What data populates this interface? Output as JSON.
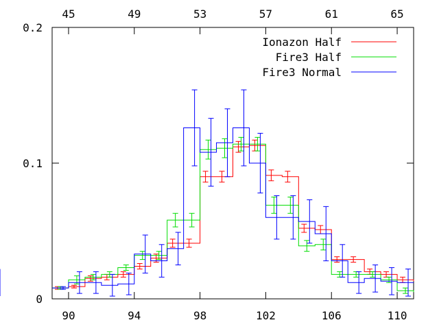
{
  "chart_data": {
    "type": "line",
    "style": "step-with-error-bars",
    "xlim": [
      89,
      111
    ],
    "ylim": [
      0,
      0.2
    ],
    "x_ticks": [
      "90",
      "94",
      "98",
      "102",
      "106",
      "110"
    ],
    "x_tick_values": [
      90,
      94,
      98,
      102,
      106,
      110
    ],
    "x2_ticks": [
      "45",
      "49",
      "53",
      "57",
      "61",
      "65"
    ],
    "y_ticks": [
      "0",
      "0.1",
      "0.2"
    ],
    "y_tick_values": [
      0,
      0.1,
      0.2
    ],
    "legend_position": "top-right",
    "grid": false,
    "bin_edges": [
      89,
      90,
      91,
      92,
      93,
      94,
      95,
      96,
      97,
      98,
      99,
      100,
      101,
      102,
      103,
      104,
      105,
      106,
      107,
      108,
      109,
      110,
      111
    ],
    "series": [
      {
        "name": "Ionazon Half",
        "color": "#ff0000",
        "values": [
          0.008,
          0.009,
          0.015,
          0.016,
          0.018,
          0.024,
          0.03,
          0.041,
          0.041,
          0.09,
          0.09,
          0.112,
          0.113,
          0.091,
          0.09,
          0.052,
          0.051,
          0.029,
          0.029,
          0.02,
          0.018,
          0.014,
          0.013
        ],
        "errors": [
          0.001,
          0.001,
          0.002,
          0.002,
          0.002,
          0.002,
          0.003,
          0.003,
          0.003,
          0.004,
          0.004,
          0.004,
          0.004,
          0.004,
          0.004,
          0.003,
          0.003,
          0.002,
          0.002,
          0.002,
          0.002,
          0.002,
          0.002
        ]
      },
      {
        "name": "Fire3 Half",
        "color": "#00dd00",
        "values": [
          0.008,
          0.014,
          0.016,
          0.018,
          0.023,
          0.032,
          0.032,
          0.058,
          0.058,
          0.11,
          0.111,
          0.114,
          0.114,
          0.069,
          0.069,
          0.039,
          0.04,
          0.018,
          0.018,
          0.018,
          0.014,
          0.006,
          0.005
        ],
        "errors": [
          0.001,
          0.003,
          0.002,
          0.002,
          0.002,
          0.003,
          0.003,
          0.005,
          0.005,
          0.007,
          0.007,
          0.005,
          0.005,
          0.006,
          0.006,
          0.004,
          0.004,
          0.002,
          0.002,
          0.002,
          0.002,
          0.002,
          0.002
        ]
      },
      {
        "name": "Fire3 Normal",
        "color": "#0000ff",
        "values": [
          0.008,
          0.012,
          0.012,
          0.01,
          0.011,
          0.033,
          0.028,
          0.037,
          0.126,
          0.108,
          0.115,
          0.126,
          0.1,
          0.06,
          0.06,
          0.057,
          0.048,
          0.028,
          0.012,
          0.015,
          0.013,
          0.012,
          0.012
        ],
        "errors": [
          0.001,
          0.008,
          0.008,
          0.008,
          0.008,
          0.014,
          0.012,
          0.012,
          0.028,
          0.025,
          0.025,
          0.028,
          0.022,
          0.016,
          0.016,
          0.016,
          0.02,
          0.012,
          0.008,
          0.01,
          0.01,
          0.01,
          0.01
        ]
      }
    ]
  }
}
